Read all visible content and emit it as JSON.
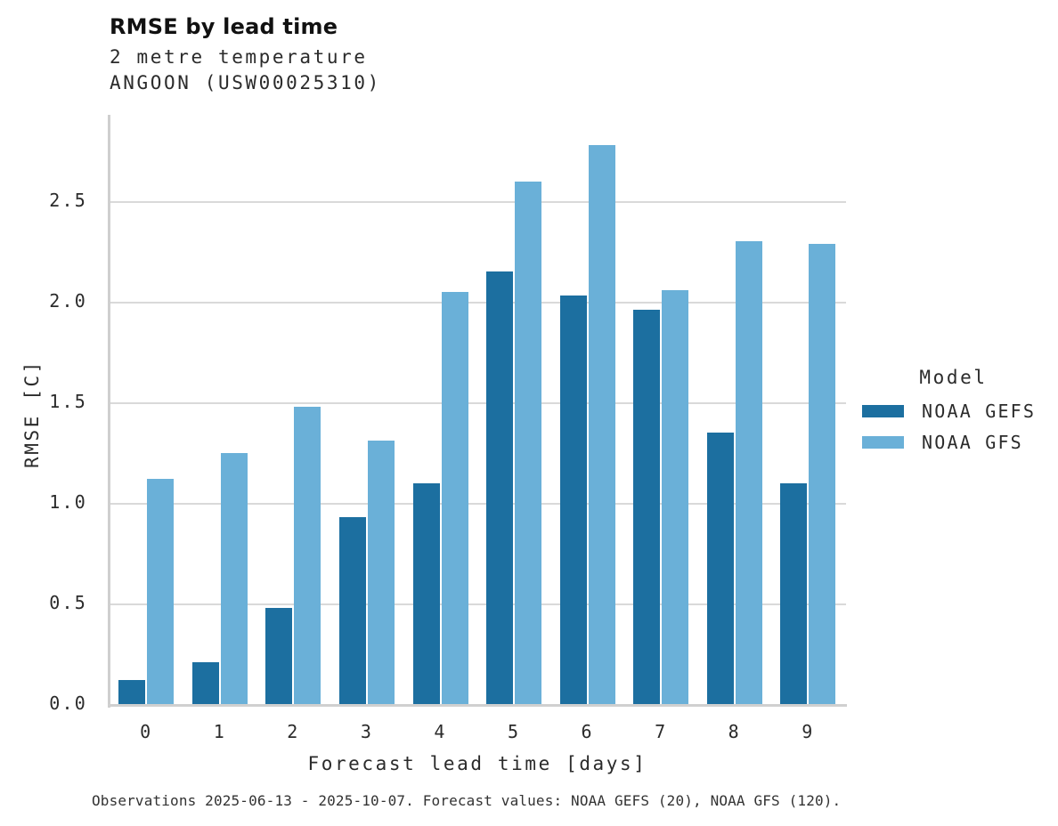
{
  "header": {
    "title": "RMSE by lead time",
    "subtitle_line1": "2 metre temperature",
    "subtitle_line2": "ANGOON (USW00025310)"
  },
  "footer": {
    "caption": "Observations 2025-06-13 - 2025-10-07. Forecast values: NOAA GEFS (20), NOAA GFS (120)."
  },
  "legend": {
    "title": "Model"
  },
  "colors": {
    "gefs_dark_blue": "#1c6fa0",
    "gfs_light_blue": "#6ab0d8",
    "gridline_gray": "#d9d9d9"
  },
  "chart_data": {
    "type": "bar",
    "title": "RMSE by lead time",
    "subtitle": [
      "2 metre temperature",
      "ANGOON (USW00025310)"
    ],
    "categories": [
      "0",
      "1",
      "2",
      "3",
      "4",
      "5",
      "6",
      "7",
      "8",
      "9"
    ],
    "series": [
      {
        "name": "NOAA GEFS",
        "color": "#1c6fa0",
        "values": [
          0.12,
          0.21,
          0.48,
          0.93,
          1.1,
          2.15,
          2.03,
          1.96,
          1.35,
          1.1
        ]
      },
      {
        "name": "NOAA GFS",
        "color": "#6ab0d8",
        "values": [
          1.12,
          1.25,
          1.48,
          1.31,
          2.05,
          2.6,
          2.78,
          2.06,
          2.3,
          2.29
        ]
      }
    ],
    "xlabel": "Forecast lead time [days]",
    "ylabel": "RMSE [C]",
    "yticks": [
      "0.0",
      "0.5",
      "1.0",
      "1.5",
      "2.0",
      "2.5"
    ],
    "ylim": [
      0,
      2.935
    ],
    "grid": true,
    "legend_position": "right",
    "caption": "Observations 2025-06-13 - 2025-10-07. Forecast values: NOAA GEFS (20), NOAA GFS (120)."
  }
}
